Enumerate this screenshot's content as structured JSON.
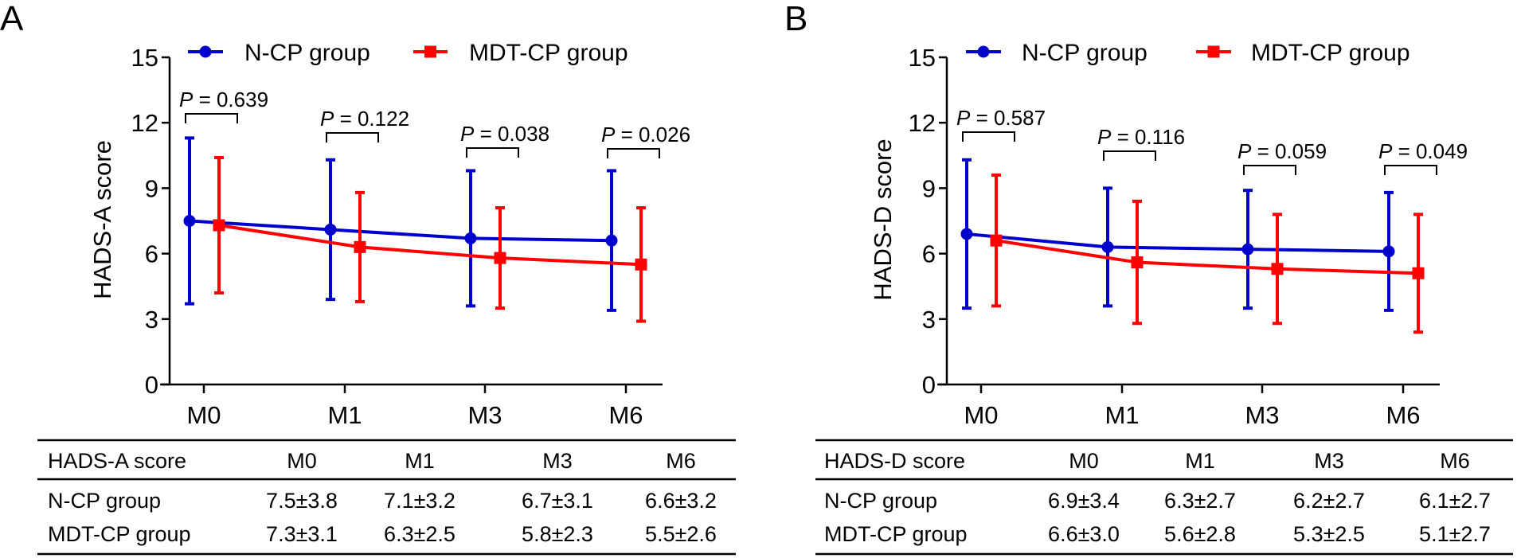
{
  "chart_data": [
    {
      "type": "line",
      "panel_label": "A",
      "ylabel": "HADS-A score",
      "xlabel": "",
      "categories": [
        "M0",
        "M1",
        "M3",
        "M6"
      ],
      "ylim": [
        0,
        15
      ],
      "yticks": [
        "0",
        "3",
        "6",
        "9",
        "12",
        "15"
      ],
      "grid": false,
      "legend_position": "top",
      "error_bars": "mean ± SD",
      "series": [
        {
          "name": "N-CP group",
          "color": "#0000CC",
          "marker": "circle",
          "values": [
            7.5,
            7.1,
            6.7,
            6.6
          ],
          "sd": [
            3.8,
            3.2,
            3.1,
            3.2
          ]
        },
        {
          "name": "MDT-CP group",
          "color": "#FF0000",
          "marker": "square",
          "values": [
            7.3,
            6.3,
            5.8,
            5.5
          ],
          "sd": [
            3.1,
            2.5,
            2.3,
            2.6
          ]
        }
      ],
      "p_values": [
        {
          "italic": "P",
          "text": " = 0.639"
        },
        {
          "italic": "P",
          "text": " = 0.122"
        },
        {
          "italic": "P",
          "text": " = 0.038"
        },
        {
          "italic": "P",
          "text": " = 0.026"
        }
      ],
      "table": {
        "header": [
          "HADS-A score",
          "M0",
          "M1",
          "M3",
          "M6"
        ],
        "rows": [
          [
            "N-CP group",
            "7.5±3.8",
            "7.1±3.2",
            "6.7±3.1",
            "6.6±3.2"
          ],
          [
            "MDT-CP group",
            "7.3±3.1",
            "6.3±2.5",
            "5.8±2.3",
            "5.5±2.6"
          ]
        ]
      }
    },
    {
      "type": "line",
      "panel_label": "B",
      "ylabel": "HADS-D score",
      "xlabel": "",
      "categories": [
        "M0",
        "M1",
        "M3",
        "M6"
      ],
      "ylim": [
        0,
        15
      ],
      "yticks": [
        "0",
        "3",
        "6",
        "9",
        "12",
        "15"
      ],
      "grid": false,
      "legend_position": "top",
      "error_bars": "mean ± SD",
      "series": [
        {
          "name": "N-CP group",
          "color": "#0000CC",
          "marker": "circle",
          "values": [
            6.9,
            6.3,
            6.2,
            6.1
          ],
          "sd": [
            3.4,
            2.7,
            2.7,
            2.7
          ]
        },
        {
          "name": "MDT-CP group",
          "color": "#FF0000",
          "marker": "square",
          "values": [
            6.6,
            5.6,
            5.3,
            5.1
          ],
          "sd": [
            3.0,
            2.8,
            2.5,
            2.7
          ]
        }
      ],
      "p_values": [
        {
          "italic": "P",
          "text": " = 0.587"
        },
        {
          "italic": "P",
          "text": " = 0.116"
        },
        {
          "italic": "P",
          "text": " = 0.059"
        },
        {
          "italic": "P",
          "text": " = 0.049"
        }
      ],
      "table": {
        "header": [
          "HADS-D score",
          "M0",
          "M1",
          "M3",
          "M6"
        ],
        "rows": [
          [
            "N-CP group",
            "6.9±3.4",
            "6.3±2.7",
            "6.2±2.7",
            "6.1±2.7"
          ],
          [
            "MDT-CP group",
            "6.6±3.0",
            "5.6±2.8",
            "5.3±2.5",
            "5.1±2.7"
          ]
        ]
      }
    }
  ]
}
